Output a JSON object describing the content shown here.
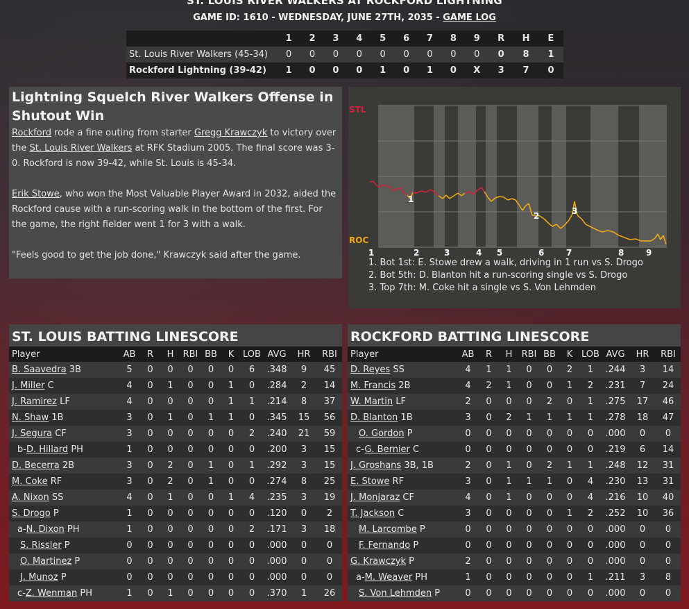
{
  "header": {
    "matchup": "ST. LOUIS RIVER WALKERS AT ROCKFORD LIGHTNING",
    "game_info": "GAME ID: 1610 - WEDNESDAY, JUNE 27TH, 2035 - ",
    "game_log_link": "GAME LOG"
  },
  "linescore": {
    "columns": [
      "",
      "1",
      "2",
      "3",
      "4",
      "5",
      "6",
      "7",
      "8",
      "9",
      "R",
      "H",
      "E"
    ],
    "rows": [
      {
        "team": "St. Louis River Walkers (45-34)",
        "innings": [
          "0",
          "0",
          "0",
          "0",
          "0",
          "0",
          "0",
          "0",
          "0"
        ],
        "r": "0",
        "h": "8",
        "e": "1"
      },
      {
        "team": "Rockford Lightning (39-42)",
        "innings": [
          "1",
          "0",
          "0",
          "0",
          "1",
          "0",
          "1",
          "0",
          "X"
        ],
        "r": "3",
        "h": "7",
        "e": "0"
      }
    ]
  },
  "story": {
    "headline": "Lightning Squelch River Walkers Offense in Shutout Win",
    "p1": {
      "t1": "Rockford",
      "t2": " rode a fine outing from starter ",
      "t3": "Gregg Krawczyk",
      "t4": " to victory over the ",
      "t5": "St. Louis River Walkers",
      "t6": " at RFK Stadium 2005. The final score was 3-0. Rockford is now 39-42, while St. Louis is 45-34."
    },
    "p2": {
      "t1": "Erik Stowe",
      "t2": ", who won the Most Valuable Player Award in 2032, aided the Rockford cause with a run-scoring walk in the bottom of the first. For the game, the right fielder went 1 for 3 with a walk."
    },
    "p3": "\"Feels good to get the job done,\" Krawczyk said after the game."
  },
  "win_prob": {
    "top_label": "STL",
    "bottom_label": "ROC",
    "top_color": "#d2223c",
    "bottom_color": "#f0a818",
    "innings": [
      "1",
      "2",
      "3",
      "4",
      "5",
      "6",
      "7",
      "8",
      "9"
    ],
    "event_markers": [
      "1",
      "2",
      "3"
    ],
    "notes": [
      "1. Bot 1st: E. Stowe drew a walk, driving in 1 run vs S. Drogo",
      "2. Bot 5th: D. Blanton hit a run-scoring single vs S. Drogo",
      "3. Top 7th: M. Coke hit a single vs S. Von Lehmden"
    ]
  },
  "stl_batting": {
    "title": "ST. LOUIS BATTING LINESCORE",
    "headers": [
      "Player",
      "AB",
      "R",
      "H",
      "RBI",
      "BB",
      "K",
      "LOB",
      "AVG",
      "HR",
      "RBI"
    ],
    "rows": [
      {
        "prefix": "",
        "name": "B. Saavedra",
        "pos": " 3B",
        "stats": [
          "5",
          "0",
          "0",
          "0",
          "0",
          "0",
          "6",
          ".348",
          "9",
          "45"
        ]
      },
      {
        "prefix": "",
        "name": "J. Miller",
        "pos": " C",
        "stats": [
          "4",
          "0",
          "1",
          "0",
          "0",
          "1",
          "0",
          ".284",
          "2",
          "14"
        ]
      },
      {
        "prefix": "",
        "name": "J. Ramirez",
        "pos": " LF",
        "stats": [
          "4",
          "0",
          "0",
          "0",
          "0",
          "1",
          "1",
          ".214",
          "8",
          "37"
        ]
      },
      {
        "prefix": "",
        "name": "N. Shaw",
        "pos": " 1B",
        "stats": [
          "3",
          "0",
          "1",
          "0",
          "1",
          "1",
          "0",
          ".345",
          "15",
          "56"
        ]
      },
      {
        "prefix": "",
        "name": "J. Segura",
        "pos": " CF",
        "stats": [
          "3",
          "0",
          "0",
          "0",
          "0",
          "0",
          "2",
          ".240",
          "21",
          "59"
        ]
      },
      {
        "prefix": "b-",
        "name": "D. Hillard",
        "pos": " PH",
        "stats": [
          "1",
          "0",
          "0",
          "0",
          "0",
          "0",
          "0",
          ".200",
          "3",
          "15"
        ]
      },
      {
        "prefix": "",
        "name": "D. Becerra",
        "pos": " 2B",
        "stats": [
          "3",
          "0",
          "2",
          "0",
          "1",
          "0",
          "1",
          ".292",
          "3",
          "15"
        ]
      },
      {
        "prefix": "",
        "name": "M. Coke",
        "pos": " RF",
        "stats": [
          "3",
          "0",
          "2",
          "0",
          "1",
          "0",
          "0",
          ".274",
          "8",
          "25"
        ]
      },
      {
        "prefix": "",
        "name": "A. Nixon",
        "pos": " SS",
        "stats": [
          "4",
          "0",
          "1",
          "0",
          "0",
          "1",
          "4",
          ".235",
          "3",
          "19"
        ]
      },
      {
        "prefix": "",
        "name": "S. Drogo",
        "pos": " P",
        "stats": [
          "1",
          "0",
          "0",
          "0",
          "0",
          "0",
          "0",
          ".120",
          "0",
          "2"
        ]
      },
      {
        "prefix": "a-",
        "name": "N. Dixon",
        "pos": " PH",
        "stats": [
          "1",
          "0",
          "0",
          "0",
          "0",
          "0",
          "2",
          ".171",
          "3",
          "18"
        ]
      },
      {
        "prefix": "",
        "name": "S. Rissler",
        "pos": " P",
        "stats": [
          "0",
          "0",
          "0",
          "0",
          "0",
          "0",
          "0",
          ".000",
          "0",
          "0"
        ]
      },
      {
        "prefix": "",
        "name": "O. Martinez",
        "pos": " P",
        "stats": [
          "0",
          "0",
          "0",
          "0",
          "0",
          "0",
          "0",
          ".000",
          "0",
          "0"
        ]
      },
      {
        "prefix": "",
        "name": "J. Munoz",
        "pos": " P",
        "stats": [
          "0",
          "0",
          "0",
          "0",
          "0",
          "0",
          "0",
          ".000",
          "0",
          "0"
        ]
      },
      {
        "prefix": "c-",
        "name": "Z. Wenman",
        "pos": " PH",
        "stats": [
          "1",
          "0",
          "1",
          "0",
          "0",
          "0",
          "0",
          ".370",
          "1",
          "26"
        ]
      }
    ]
  },
  "roc_batting": {
    "title": "ROCKFORD BATTING LINESCORE",
    "headers": [
      "Player",
      "AB",
      "R",
      "H",
      "RBI",
      "BB",
      "K",
      "LOB",
      "AVG",
      "HR",
      "RBI"
    ],
    "rows": [
      {
        "prefix": "",
        "name": "D. Reyes",
        "pos": " SS",
        "stats": [
          "4",
          "1",
          "1",
          "0",
          "0",
          "2",
          "1",
          ".244",
          "3",
          "14"
        ]
      },
      {
        "prefix": "",
        "name": "M. Francis",
        "pos": " 2B",
        "stats": [
          "4",
          "2",
          "1",
          "0",
          "0",
          "1",
          "2",
          ".231",
          "7",
          "24"
        ]
      },
      {
        "prefix": "",
        "name": "W. Martin",
        "pos": " LF",
        "stats": [
          "2",
          "0",
          "0",
          "0",
          "2",
          "0",
          "1",
          ".275",
          "17",
          "46"
        ]
      },
      {
        "prefix": "",
        "name": "D. Blanton",
        "pos": " 1B",
        "stats": [
          "3",
          "0",
          "2",
          "1",
          "1",
          "1",
          "1",
          ".278",
          "18",
          "47"
        ]
      },
      {
        "prefix": "",
        "name": "O. Gordon",
        "pos": " P",
        "stats": [
          "0",
          "0",
          "0",
          "0",
          "0",
          "0",
          "0",
          ".000",
          "0",
          "0"
        ]
      },
      {
        "prefix": "c-",
        "name": "G. Bernier",
        "pos": " C",
        "stats": [
          "0",
          "0",
          "0",
          "0",
          "0",
          "0",
          "0",
          ".219",
          "6",
          "14"
        ]
      },
      {
        "prefix": "",
        "name": "J. Groshans",
        "pos": " 3B, 1B",
        "stats": [
          "2",
          "0",
          "1",
          "0",
          "2",
          "1",
          "1",
          ".248",
          "12",
          "31"
        ]
      },
      {
        "prefix": "",
        "name": "E. Stowe",
        "pos": " RF",
        "stats": [
          "3",
          "0",
          "1",
          "1",
          "1",
          "0",
          "4",
          ".230",
          "13",
          "31"
        ]
      },
      {
        "prefix": "",
        "name": "J. Monjaraz",
        "pos": " CF",
        "stats": [
          "4",
          "0",
          "1",
          "0",
          "0",
          "0",
          "4",
          ".216",
          "10",
          "40"
        ]
      },
      {
        "prefix": "",
        "name": "T. Jackson",
        "pos": " C",
        "stats": [
          "3",
          "0",
          "0",
          "0",
          "0",
          "1",
          "2",
          ".252",
          "10",
          "36"
        ]
      },
      {
        "prefix": "",
        "name": "M. Larcombe",
        "pos": " P",
        "stats": [
          "0",
          "0",
          "0",
          "0",
          "0",
          "0",
          "0",
          ".000",
          "0",
          "0"
        ]
      },
      {
        "prefix": "",
        "name": "F. Fernando",
        "pos": " P",
        "stats": [
          "0",
          "0",
          "0",
          "0",
          "0",
          "0",
          "0",
          ".000",
          "0",
          "0"
        ]
      },
      {
        "prefix": "",
        "name": "G. Krawczyk",
        "pos": " P",
        "stats": [
          "2",
          "0",
          "0",
          "0",
          "0",
          "0",
          "0",
          ".000",
          "0",
          "0"
        ]
      },
      {
        "prefix": "a-",
        "name": "M. Weaver",
        "pos": " PH",
        "stats": [
          "1",
          "0",
          "0",
          "0",
          "0",
          "0",
          "1",
          ".211",
          "3",
          "8"
        ]
      },
      {
        "prefix": "",
        "name": "S. Von Lehmden",
        "pos": " P",
        "stats": [
          "0",
          "0",
          "0",
          "0",
          "0",
          "0",
          "0",
          ".000",
          "0",
          "0"
        ]
      }
    ]
  }
}
